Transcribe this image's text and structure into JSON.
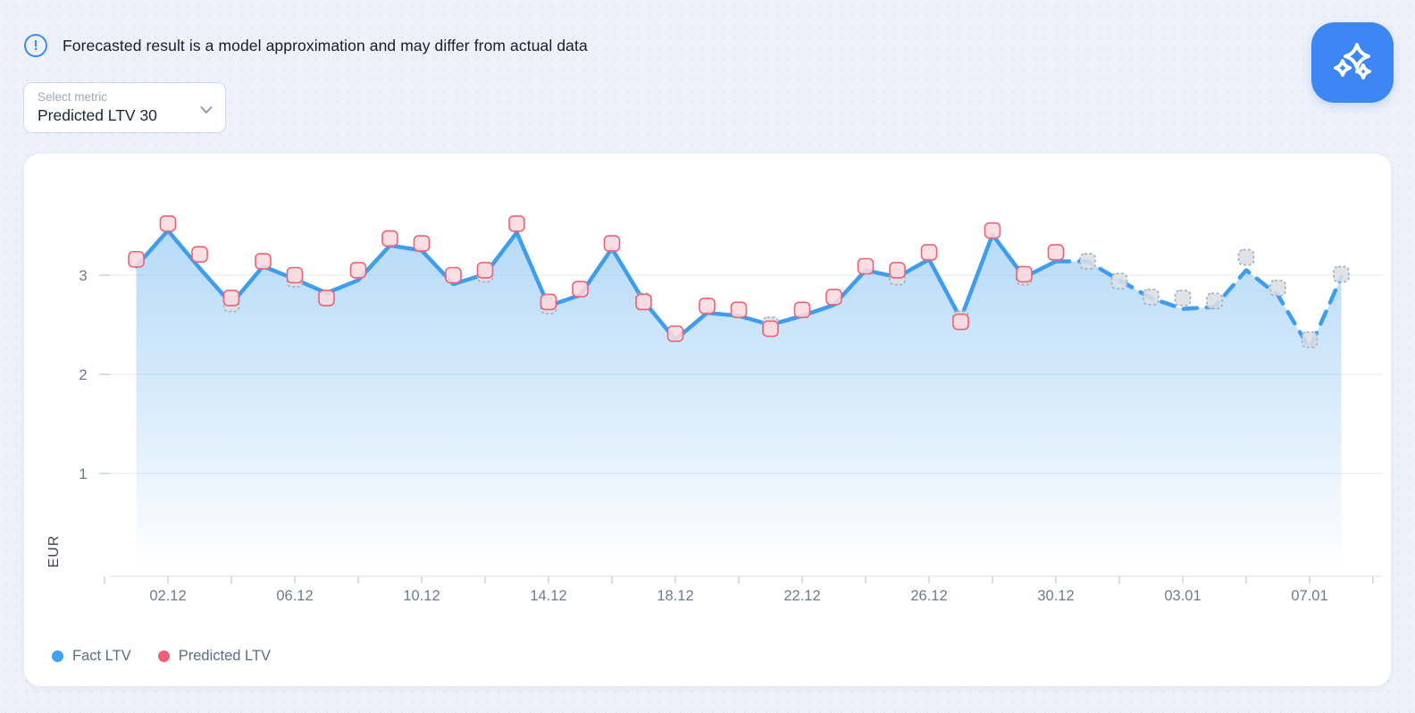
{
  "banner": {
    "text": "Forecasted result is a model approximation and may differ from actual data"
  },
  "metric_select": {
    "label": "Select metric",
    "value": "Predicted LTV 30"
  },
  "legend": [
    {
      "label": "Fact LTV",
      "color": "#41a0f2"
    },
    {
      "label": "Predicted LTV",
      "color": "#ec5f74"
    }
  ],
  "chart_data": {
    "type": "line",
    "title": "",
    "xlabel": "",
    "ylabel": "EUR",
    "ylim": [
      0,
      3.8
    ],
    "y_ticks": [
      3,
      2,
      1
    ],
    "x_tick_labels": [
      "02.12",
      "06.12",
      "10.12",
      "14.12",
      "18.12",
      "22.12",
      "26.12",
      "30.12",
      "03.01",
      "07.01"
    ],
    "grid": "horizontal",
    "legend_position": "bottom-left",
    "colors": {
      "line": "#3f9df0",
      "area_fill": "#7ebef2",
      "predicted_marker_stroke": "#ee6277",
      "predicted_marker_fill": "#fadbdf",
      "forecast_marker_stroke": "#a7aeb9",
      "forecast_marker_fill": "#dbdfe5",
      "grid": "#e9edf3",
      "axis_text": "#6e7a8f"
    },
    "series": [
      {
        "name": "Fact LTV",
        "style": "solid line + area fill",
        "range": "01.12 - 30.12"
      },
      {
        "name": "Predicted LTV",
        "style": "red rounded-square markers",
        "range": "01.12 - 30.12"
      },
      {
        "name": "Forecast",
        "style": "dashed line + gray rounded-square markers",
        "range": "31.12 - 08.01"
      }
    ],
    "history": [
      {
        "date": "01.12",
        "fact": 3.09,
        "predicted": 3.16
      },
      {
        "date": "02.12",
        "fact": 3.45,
        "predicted": 3.52
      },
      {
        "date": "03.12",
        "fact": 3.07,
        "predicted": 3.21
      },
      {
        "date": "04.12",
        "fact": 2.71,
        "predicted": 2.77,
        "fact_marker": true
      },
      {
        "date": "05.12",
        "fact": 3.09,
        "predicted": 3.14
      },
      {
        "date": "06.12",
        "fact": 2.96,
        "predicted": 3.0,
        "fact_marker": true
      },
      {
        "date": "07.12",
        "fact": 2.82,
        "predicted": 2.77
      },
      {
        "date": "08.12",
        "fact": 2.95,
        "predicted": 3.05
      },
      {
        "date": "09.12",
        "fact": 3.3,
        "predicted": 3.37
      },
      {
        "date": "10.12",
        "fact": 3.25,
        "predicted": 3.32
      },
      {
        "date": "11.12",
        "fact": 2.91,
        "predicted": 3.0
      },
      {
        "date": "12.12",
        "fact": 3.01,
        "predicted": 3.05,
        "fact_marker": true
      },
      {
        "date": "13.12",
        "fact": 3.43,
        "predicted": 3.52
      },
      {
        "date": "14.12",
        "fact": 2.69,
        "predicted": 2.73,
        "fact_marker": true
      },
      {
        "date": "15.12",
        "fact": 2.8,
        "predicted": 2.86
      },
      {
        "date": "16.12",
        "fact": 3.27,
        "predicted": 3.32
      },
      {
        "date": "17.12",
        "fact": 2.74,
        "predicted": 2.73,
        "fact_marker": true
      },
      {
        "date": "18.12",
        "fact": 2.35,
        "predicted": 2.41
      },
      {
        "date": "19.12",
        "fact": 2.62,
        "predicted": 2.69
      },
      {
        "date": "20.12",
        "fact": 2.59,
        "predicted": 2.65
      },
      {
        "date": "21.12",
        "fact": 2.5,
        "predicted": 2.46,
        "fact_marker": true
      },
      {
        "date": "22.12",
        "fact": 2.59,
        "predicted": 2.65
      },
      {
        "date": "23.12",
        "fact": 2.7,
        "predicted": 2.78
      },
      {
        "date": "24.12",
        "fact": 3.05,
        "predicted": 3.09
      },
      {
        "date": "25.12",
        "fact": 2.98,
        "predicted": 3.05,
        "fact_marker": true
      },
      {
        "date": "26.12",
        "fact": 3.16,
        "predicted": 3.23
      },
      {
        "date": "27.12",
        "fact": 2.56,
        "predicted": 2.53,
        "fact_marker": true
      },
      {
        "date": "28.12",
        "fact": 3.41,
        "predicted": 3.45
      },
      {
        "date": "29.12",
        "fact": 2.98,
        "predicted": 3.01,
        "fact_marker": true
      },
      {
        "date": "30.12",
        "fact": 3.14,
        "predicted": 3.23
      }
    ],
    "forecast": [
      {
        "date": "31.12",
        "value": 3.14,
        "marker": 3.14
      },
      {
        "date": "01.01",
        "value": 2.95,
        "marker": 2.94
      },
      {
        "date": "02.01",
        "value": 2.77,
        "marker": 2.78
      },
      {
        "date": "03.01",
        "value": 2.66,
        "marker": 2.77
      },
      {
        "date": "04.01",
        "value": 2.68,
        "marker": 2.74
      },
      {
        "date": "05.01",
        "value": 3.05,
        "marker": 3.18
      },
      {
        "date": "06.01",
        "value": 2.8,
        "marker": 2.87
      },
      {
        "date": "07.01",
        "value": 2.26,
        "marker": 2.35
      },
      {
        "date": "08.01",
        "value": 2.98,
        "marker": 3.01
      }
    ]
  }
}
